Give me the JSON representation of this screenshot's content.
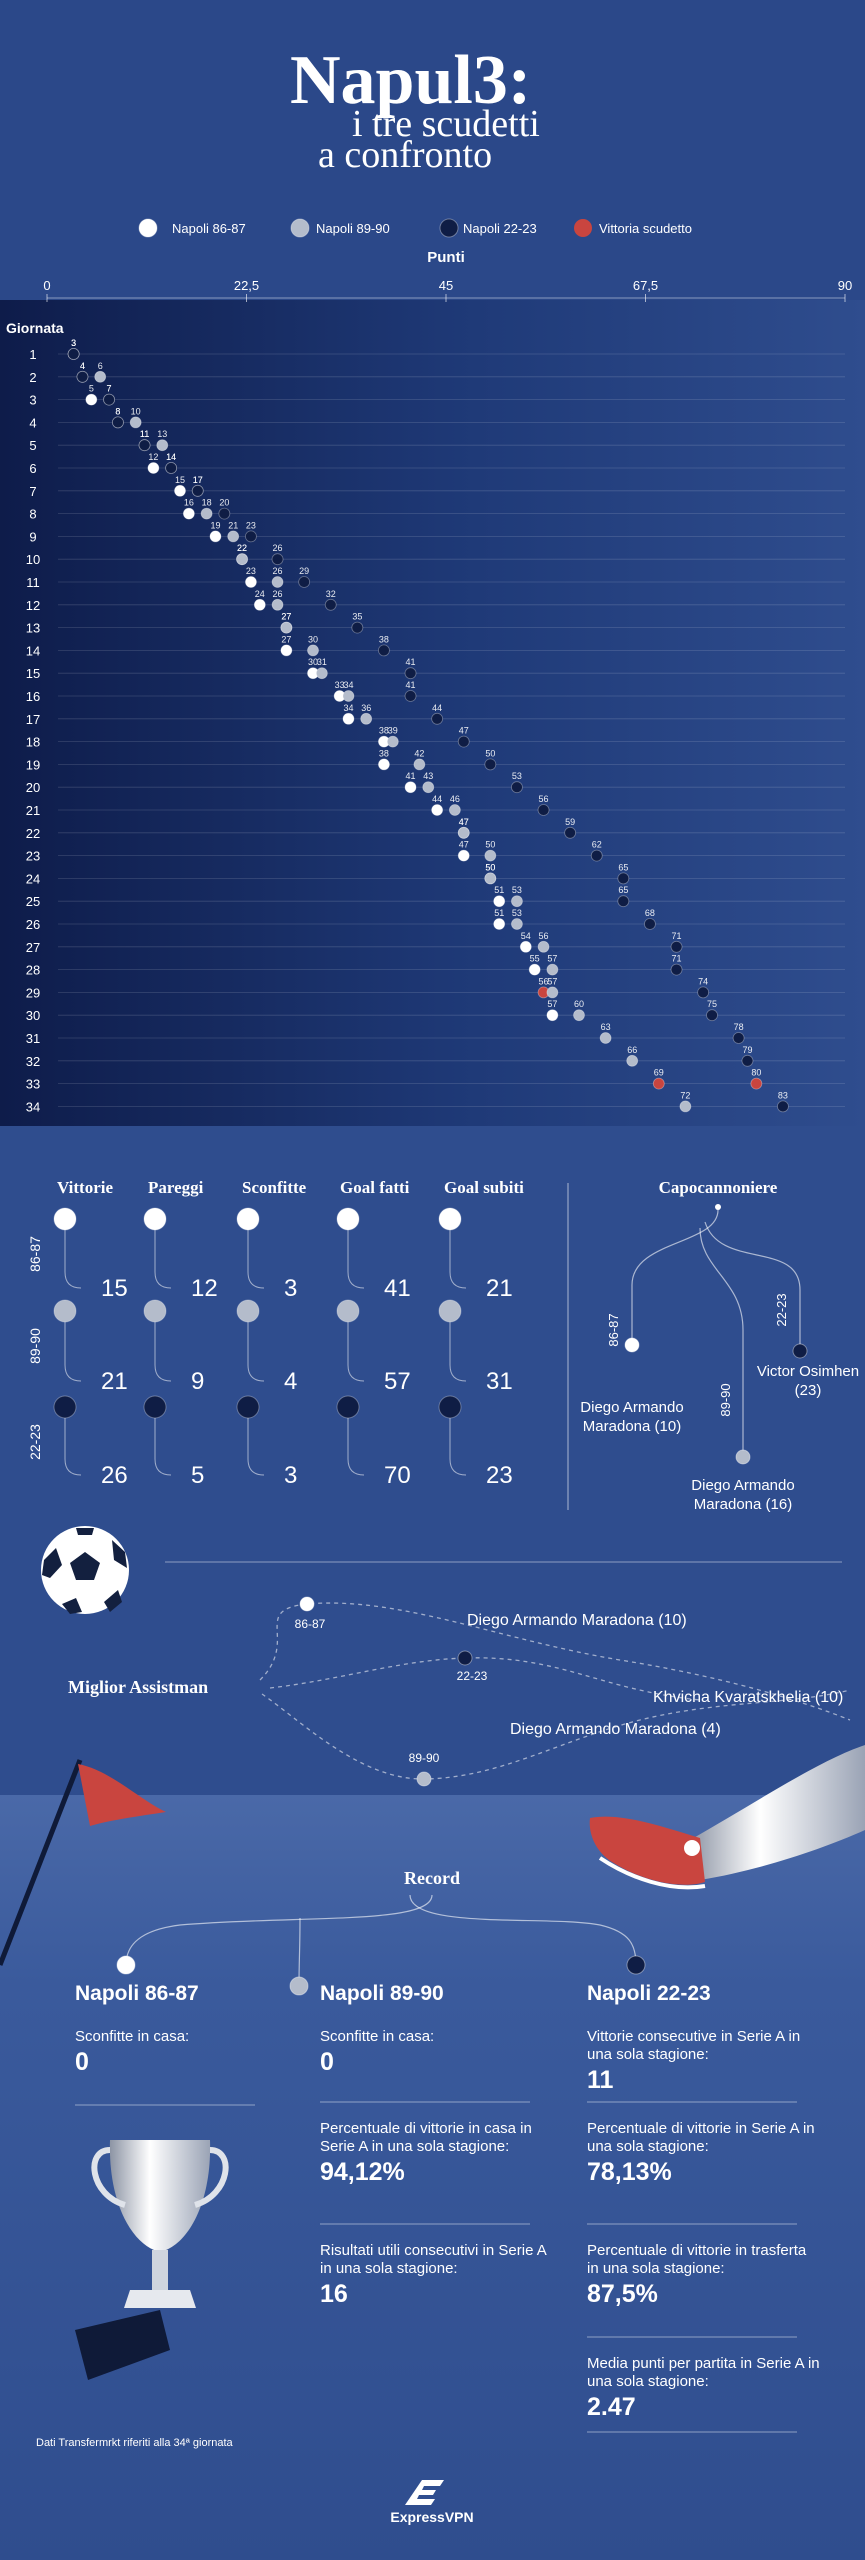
{
  "header": {
    "title": "Napul3:",
    "subtitle_lines": [
      "i tre scudetti",
      "a confronto"
    ]
  },
  "chart_data": {
    "type": "dot",
    "x_label": "Punti",
    "y_label": "Giornata",
    "categories": [
      1,
      2,
      3,
      4,
      5,
      6,
      7,
      8,
      9,
      10,
      11,
      12,
      13,
      14,
      15,
      16,
      17,
      18,
      19,
      20,
      21,
      22,
      23,
      24,
      25,
      26,
      27,
      28,
      29,
      30,
      31,
      32,
      33,
      34
    ],
    "xlim": [
      0,
      90
    ],
    "xticks": [
      0,
      {
        "value": 22.5,
        "label": "22,5"
      },
      45,
      {
        "value": 67.5,
        "label": "67,5"
      },
      90
    ],
    "grid": false,
    "highlight": {
      "name": "Vittoria scudetto",
      "color": "#c9453f"
    },
    "series": [
      {
        "name": "Napoli 86-87",
        "color": "#ffffff",
        "scudetto_giornata": 29,
        "values": [
          3,
          4,
          5,
          8,
          11,
          12,
          15,
          16,
          19,
          22,
          23,
          24,
          27,
          27,
          30,
          33,
          34,
          38,
          38,
          41,
          44,
          47,
          47,
          50,
          51,
          51,
          54,
          55,
          56,
          57,
          null,
          null,
          null,
          null
        ]
      },
      {
        "name": "Napoli 89-90",
        "color": "#b4bccb",
        "scudetto_giornata": 33,
        "values": [
          3,
          6,
          7,
          10,
          13,
          14,
          17,
          18,
          21,
          22,
          26,
          26,
          27,
          30,
          31,
          34,
          36,
          39,
          42,
          43,
          46,
          47,
          50,
          50,
          53,
          53,
          56,
          57,
          57,
          60,
          63,
          66,
          69,
          72
        ]
      },
      {
        "name": "Napoli 22-23",
        "color": "#0f1d45",
        "scudetto_giornata": 33,
        "values": [
          3,
          4,
          7,
          8,
          11,
          14,
          17,
          20,
          23,
          26,
          29,
          32,
          35,
          38,
          41,
          41,
          44,
          47,
          50,
          53,
          56,
          59,
          62,
          65,
          65,
          68,
          71,
          71,
          74,
          75,
          78,
          79,
          80,
          83
        ]
      }
    ]
  },
  "stats": {
    "columns": [
      "Vittorie",
      "Pareggi",
      "Sconfitte",
      "Goal fatti",
      "Goal subiti"
    ],
    "rows": [
      {
        "label": "86-87",
        "color": "#ffffff",
        "values": [
          15,
          12,
          3,
          41,
          21
        ]
      },
      {
        "label": "89-90",
        "color": "#b4bccb",
        "values": [
          21,
          9,
          4,
          57,
          31
        ]
      },
      {
        "label": "22-23",
        "color": "#0f1d45",
        "values": [
          26,
          5,
          3,
          70,
          23
        ]
      }
    ]
  },
  "top_scorer": {
    "title": "Capocannoniere",
    "items": [
      {
        "season": "86-87",
        "name": "Diego Armando Maradona (10)"
      },
      {
        "season": "89-90",
        "name": "Diego Armando Maradona (16)"
      },
      {
        "season": "22-23",
        "name": "Victor Osimhen (23)"
      }
    ]
  },
  "assists": {
    "title": "Miglior Assistman",
    "items": [
      {
        "season": "86-87",
        "name": "Diego Armando Maradona (10)"
      },
      {
        "season": "22-23",
        "name": "Khvicha Kvaratskhelia (10)"
      },
      {
        "season": "89-90",
        "name": "Diego Armando Maradona (4)"
      }
    ]
  },
  "records": {
    "title": "Record",
    "columns": [
      {
        "name": "Napoli 86-87",
        "items": [
          {
            "label": "Sconfitte in casa:",
            "value": "0"
          }
        ]
      },
      {
        "name": "Napoli 89-90",
        "items": [
          {
            "label": "Sconfitte in casa:",
            "value": "0"
          },
          {
            "label": "Percentuale di vittorie in casa in Serie A in una sola stagione:",
            "value": "94,12%"
          },
          {
            "label": "Risultati utili consecutivi in Serie A in una sola stagione:",
            "value": "16"
          }
        ]
      },
      {
        "name": "Napoli 22-23",
        "items": [
          {
            "label": "Vittorie consecutive in Serie A in una sola stagione:",
            "value": "11"
          },
          {
            "label": "Percentuale di vittorie in Serie A in una sola stagione:",
            "value": "78,13%"
          },
          {
            "label": "Percentuale di vittorie in trasferta in una sola stagione:",
            "value": "87,5%"
          },
          {
            "label": "Media punti per partita in Serie A in una sola stagione:",
            "value": "2.47"
          }
        ]
      }
    ]
  },
  "footer": {
    "note": "Dati Transfermrkt riferiti alla 34ª giornata",
    "brand": "ExpressVPN"
  }
}
